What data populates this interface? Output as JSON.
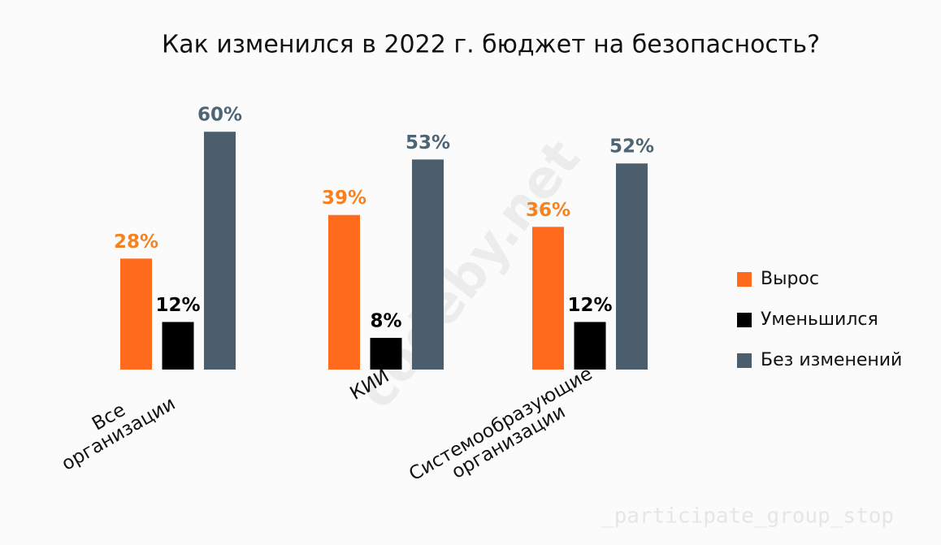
{
  "chart_data": {
    "type": "bar",
    "title": "Как изменился в 2022 г. бюджет на безопасность?",
    "categories": [
      "Все организации",
      "КИИ",
      "Системообразующие организации"
    ],
    "series": [
      {
        "name": "Вырос",
        "color": "#ff6a1c",
        "values": [
          28,
          39,
          36
        ],
        "value_labels": [
          "28%",
          "39%",
          "36%"
        ]
      },
      {
        "name": "Уменьшился",
        "color": "#000000",
        "values": [
          12,
          8,
          12
        ],
        "value_labels": [
          "12%",
          "8%",
          "12%"
        ]
      },
      {
        "name": "Без изменений",
        "color": "#4a5e6e",
        "values": [
          60,
          53,
          52
        ],
        "value_labels": [
          "60%",
          "53%",
          "52%"
        ]
      }
    ],
    "legend": "right"
  },
  "watermark": "codeby.net",
  "background_text": "_participate_group_stop"
}
